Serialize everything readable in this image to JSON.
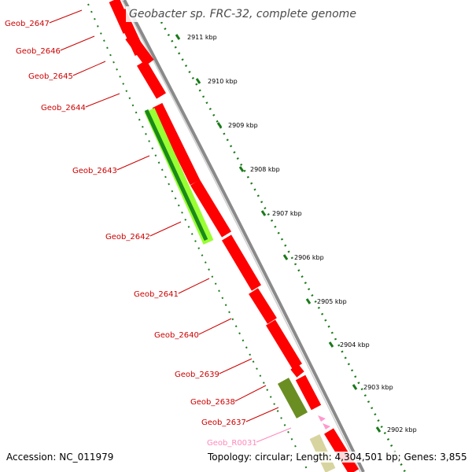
{
  "title": "Geobacter sp. FRC-32, complete genome",
  "accession_text": "Accession: NC_011979",
  "topology_text": "Topology: circular; Length: 4,304,501 bp; Genes: 3,855",
  "colors": {
    "gene_red": "#ff0000",
    "gene_green_light": "#99ff33",
    "gene_green_dark": "#1a8a1a",
    "gene_olive": "#6b8e23",
    "gene_tan": "#d8d4a0",
    "rna_pink": "#ff99cc",
    "backbone": "#888888",
    "tick_green": "#1a7a1a",
    "label_red": "#cc0000",
    "label_pink": "#ff88bb"
  },
  "kbp_labels": [
    "2911 kbp",
    "2910 kbp",
    "2909 kbp",
    "2908 kbp",
    "2907 kbp",
    "2906 kbp",
    "2905 kbp",
    "2904 kbp",
    "2903 kbp",
    "2902 kbp"
  ],
  "gene_labels": [
    {
      "text": "Geob_2647",
      "kind": "cds"
    },
    {
      "text": "Geob_2646",
      "kind": "cds"
    },
    {
      "text": "Geob_2645",
      "kind": "cds"
    },
    {
      "text": "Geob_2644",
      "kind": "cds"
    },
    {
      "text": "Geob_2643",
      "kind": "cds"
    },
    {
      "text": "Geob_2642",
      "kind": "cds"
    },
    {
      "text": "Geob_2641",
      "kind": "cds"
    },
    {
      "text": "Geob_2640",
      "kind": "cds"
    },
    {
      "text": "Geob_2639",
      "kind": "cds"
    },
    {
      "text": "Geob_2638",
      "kind": "cds"
    },
    {
      "text": "Geob_2637",
      "kind": "cds"
    },
    {
      "text": "Geob_R0031",
      "kind": "rna"
    }
  ]
}
